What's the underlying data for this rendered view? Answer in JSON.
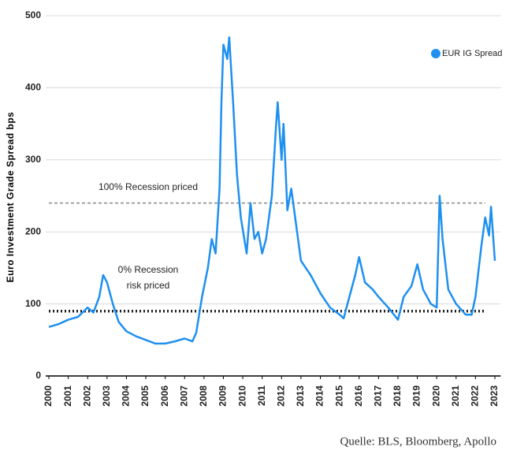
{
  "chart_data": {
    "type": "line",
    "ylabel": "Euro Investment Grade Spread bps",
    "source": "Quelle: BLS, Bloomberg, Apollo",
    "xlim": [
      2000,
      2023.3
    ],
    "xticks": [
      2000,
      2001,
      2002,
      2003,
      2004,
      2005,
      2006,
      2007,
      2008,
      2009,
      2010,
      2011,
      2012,
      2013,
      2014,
      2015,
      2016,
      2017,
      2018,
      2019,
      2020,
      2021,
      2022,
      2023
    ],
    "ylim": [
      0,
      500
    ],
    "yticks": [
      0,
      100,
      200,
      300,
      400,
      500
    ],
    "grid": true,
    "legend_position": "upper right",
    "x": [
      2000,
      2000.5,
      2001,
      2001.5,
      2002,
      2002.3,
      2002.6,
      2002.8,
      2003,
      2003.3,
      2003.6,
      2004,
      2004.5,
      2005,
      2005.5,
      2006,
      2006.5,
      2007,
      2007.4,
      2007.6,
      2007.9,
      2008.2,
      2008.4,
      2008.6,
      2008.8,
      2008.9,
      2009,
      2009.2,
      2009.3,
      2009.5,
      2009.7,
      2009.9,
      2010.2,
      2010.4,
      2010.6,
      2010.8,
      2011,
      2011.2,
      2011.5,
      2011.7,
      2011.8,
      2012,
      2012.1,
      2012.3,
      2012.5,
      2012.8,
      2013,
      2013.5,
      2014,
      2014.5,
      2015,
      2015.2,
      2015.5,
      2015.8,
      2016,
      2016.3,
      2016.7,
      2017,
      2017.5,
      2017.8,
      2018,
      2018.3,
      2018.7,
      2019,
      2019.3,
      2019.7,
      2020,
      2020.15,
      2020.3,
      2020.6,
      2021,
      2021.5,
      2021.8,
      2022,
      2022.3,
      2022.5,
      2022.7,
      2022.8,
      2023
    ],
    "series": [
      {
        "name": "EUR IG Spread",
        "color": "#1e90f0",
        "values": [
          68,
          72,
          78,
          82,
          95,
          88,
          110,
          140,
          130,
          100,
          75,
          62,
          55,
          50,
          45,
          45,
          48,
          52,
          48,
          60,
          110,
          150,
          190,
          170,
          260,
          380,
          460,
          440,
          470,
          380,
          280,
          220,
          170,
          240,
          190,
          200,
          170,
          190,
          250,
          340,
          380,
          300,
          350,
          230,
          260,
          200,
          160,
          140,
          115,
          95,
          85,
          80,
          110,
          140,
          165,
          130,
          120,
          110,
          95,
          85,
          78,
          110,
          125,
          155,
          120,
          100,
          95,
          250,
          190,
          120,
          100,
          85,
          85,
          110,
          180,
          220,
          195,
          235,
          160
        ]
      }
    ],
    "reference_lines": [
      {
        "value": 240,
        "color": "#888888",
        "style": "dashed",
        "label": [
          "100% Recession priced"
        ]
      },
      {
        "value": 90,
        "color": "#222222",
        "style": "dotted",
        "label": [
          "0% Recession",
          "risk priced"
        ]
      }
    ]
  }
}
